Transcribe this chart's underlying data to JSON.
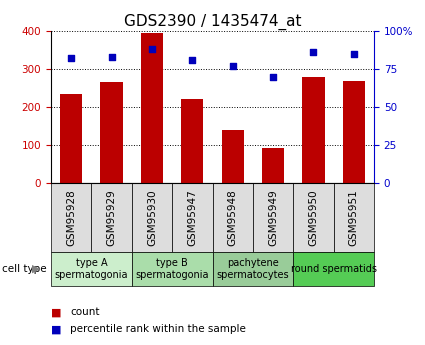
{
  "title": "GDS2390 / 1435474_at",
  "samples": [
    "GSM95928",
    "GSM95929",
    "GSM95930",
    "GSM95947",
    "GSM95948",
    "GSM95949",
    "GSM95950",
    "GSM95951"
  ],
  "counts": [
    235,
    265,
    395,
    220,
    140,
    93,
    280,
    268
  ],
  "percentiles": [
    82,
    83,
    88,
    81,
    77,
    70,
    86,
    85
  ],
  "ylim_left": [
    0,
    400
  ],
  "ylim_right": [
    0,
    100
  ],
  "yticks_left": [
    0,
    100,
    200,
    300,
    400
  ],
  "yticks_right": [
    0,
    25,
    50,
    75,
    100
  ],
  "yticklabels_right": [
    "0",
    "25",
    "50",
    "75",
    "100%"
  ],
  "bar_color": "#bb0000",
  "dot_color": "#0000bb",
  "cell_types": [
    {
      "label": "type A\nspermatogonia",
      "color": "#cceecc",
      "start": 0,
      "end": 2
    },
    {
      "label": "type B\nspermatogonia",
      "color": "#aaddaa",
      "start": 2,
      "end": 4
    },
    {
      "label": "pachytene\nspermatocytes",
      "color": "#99cc99",
      "start": 4,
      "end": 6
    },
    {
      "label": "round spermatids",
      "color": "#55cc55",
      "start": 6,
      "end": 8
    }
  ],
  "legend_items": [
    {
      "color": "#bb0000",
      "label": "count"
    },
    {
      "color": "#0000bb",
      "label": "percentile rank within the sample"
    }
  ],
  "cell_type_label": "cell type",
  "tick_label_color_left": "#cc0000",
  "tick_label_color_right": "#0000cc",
  "title_fontsize": 11,
  "tick_fontsize": 7.5,
  "cell_type_fontsize": 7,
  "xtick_bg_color": "#dddddd"
}
